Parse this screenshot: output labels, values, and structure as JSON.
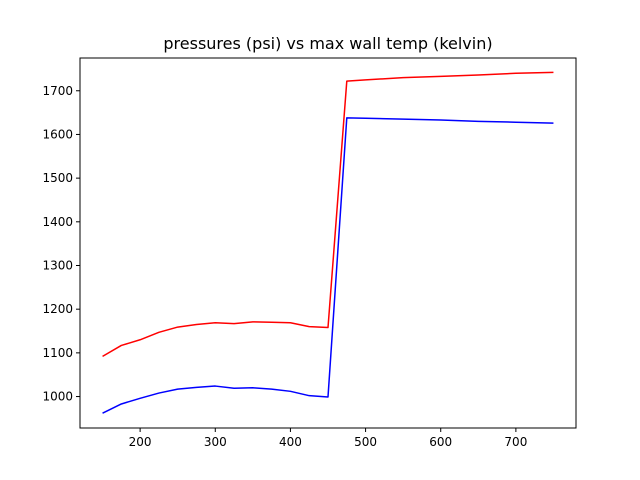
{
  "chart_data": {
    "type": "line",
    "title": "pressures (psi) vs max wall temp (kelvin)",
    "xlabel": "",
    "ylabel": "",
    "xlim": [
      120,
      780
    ],
    "ylim": [
      928,
      1775
    ],
    "x_ticks": [
      200,
      300,
      400,
      500,
      600,
      700
    ],
    "y_ticks": [
      1000,
      1100,
      1200,
      1300,
      1400,
      1500,
      1600,
      1700
    ],
    "grid": false,
    "series": [
      {
        "color": "#ff0000",
        "x": [
          150,
          175,
          200,
          225,
          250,
          275,
          300,
          325,
          350,
          375,
          400,
          425,
          450,
          475,
          500,
          550,
          600,
          650,
          700,
          750
        ],
        "y": [
          1092,
          1117,
          1130,
          1147,
          1159,
          1165,
          1169,
          1167,
          1171,
          1170,
          1169,
          1160,
          1158,
          1722,
          1725,
          1730,
          1733,
          1736,
          1740,
          1742
        ]
      },
      {
        "color": "#0000ff",
        "x": [
          150,
          175,
          200,
          225,
          250,
          275,
          300,
          325,
          350,
          375,
          400,
          425,
          450,
          475,
          500,
          550,
          600,
          650,
          700,
          750
        ],
        "y": [
          962,
          983,
          996,
          1008,
          1017,
          1021,
          1024,
          1019,
          1020,
          1017,
          1012,
          1002,
          999,
          1638,
          1637,
          1635,
          1633,
          1630,
          1628,
          1626
        ]
      }
    ]
  }
}
